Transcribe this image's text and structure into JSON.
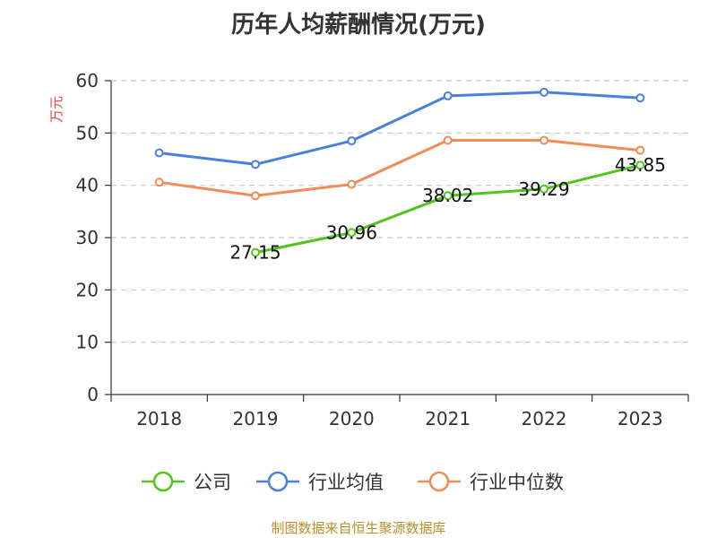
{
  "chart_data": {
    "type": "line",
    "title": "历年人均薪酬情况(万元)",
    "ylabel": "万元",
    "xlabel": "",
    "categories": [
      "2018",
      "2019",
      "2020",
      "2021",
      "2022",
      "2023"
    ],
    "ylim": [
      0,
      60
    ],
    "yticks": [
      0,
      10,
      20,
      30,
      40,
      50,
      60
    ],
    "grid": true,
    "legend_position": "bottom",
    "series": [
      {
        "name": "公司",
        "color": "#52c41a",
        "values": [
          null,
          27.15,
          30.96,
          38.02,
          39.29,
          43.85
        ],
        "labels": [
          null,
          "27.15",
          "30.96",
          "38.02",
          "39.29",
          "43.85"
        ]
      },
      {
        "name": "行业均值",
        "color": "#4a7fdb",
        "values": [
          46.2,
          44.0,
          48.5,
          57.1,
          57.8,
          56.7
        ]
      },
      {
        "name": "行业中位数",
        "color": "#f08c55",
        "values": [
          40.6,
          38.0,
          40.2,
          48.6,
          48.6,
          46.7
        ]
      }
    ]
  },
  "source": "制图数据来自恒生聚源数据库"
}
